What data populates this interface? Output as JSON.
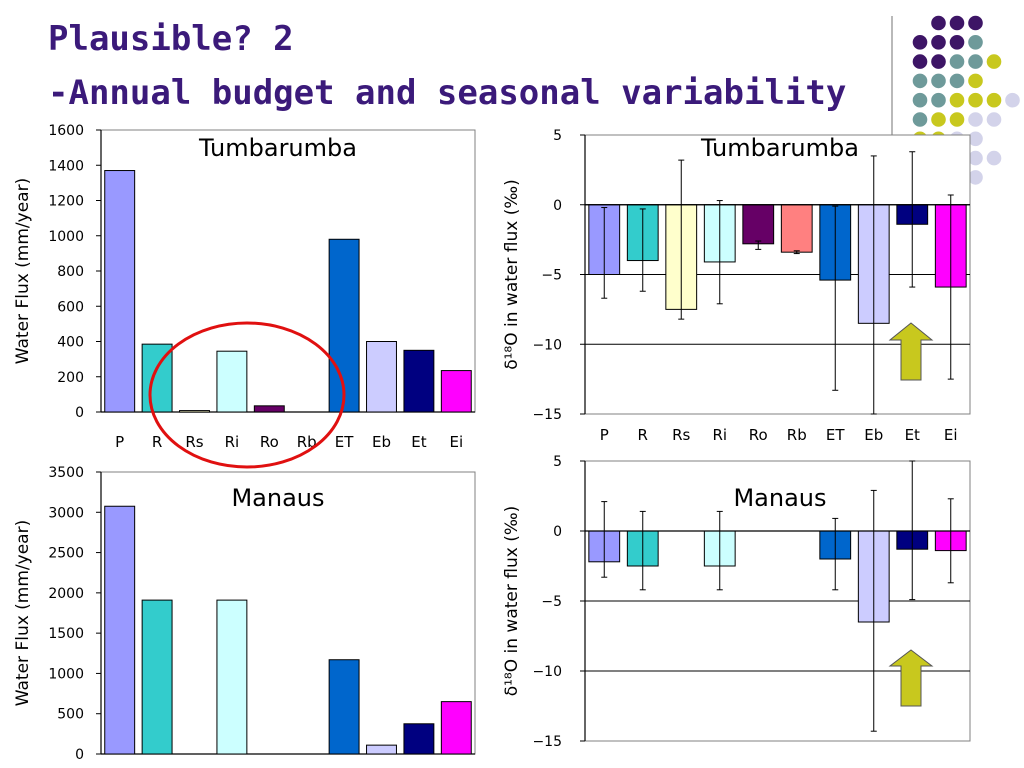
{
  "slide": {
    "title_line1": "Plausible? 2",
    "title_line2": "-Annual budget and seasonal variability"
  },
  "colors": {
    "title": "#3b1a7a",
    "decor_purple": "#3d1566",
    "decor_teal": "#6e9a9a",
    "decor_yellow": "#c8c81e",
    "decor_lavender": "#d3d3ea",
    "annotation_circle": "#e01010",
    "annotation_arrow": "#c8c81e"
  },
  "categories": [
    "P",
    "R",
    "Rs",
    "Ri",
    "Ro",
    "Rb",
    "ET",
    "Eb",
    "Et",
    "Ei"
  ],
  "bar_colors": [
    "#9999ff",
    "#33cccc",
    "#ffffcc",
    "#ccffff",
    "#660066",
    "#ff8080",
    "#0066cc",
    "#ccccff",
    "#000080",
    "#ff00ff"
  ],
  "chart_data": [
    {
      "type": "bar",
      "title": "Tumbarumba",
      "ylabel": "Water Flux (mm/year)",
      "ylim": [
        0,
        1600
      ],
      "yticks": [
        "0",
        "200",
        "400",
        "600",
        "800",
        "1000",
        "1200",
        "1400",
        "1600"
      ],
      "show_x_labels": true,
      "categories": [
        "P",
        "R",
        "Rs",
        "Ri",
        "Ro",
        "Rb",
        "ET",
        "Eb",
        "Et",
        "Ei"
      ],
      "values": [
        1370,
        385,
        8,
        345,
        35,
        0,
        980,
        400,
        350,
        235
      ]
    },
    {
      "type": "bar",
      "title": "Tumbarumba",
      "ylabel": "δ¹⁸O in water flux (‰)",
      "ylim": [
        -15,
        5
      ],
      "yticks": [
        "−15",
        "−10",
        "−5",
        "0",
        "5"
      ],
      "grid": true,
      "show_x_labels": true,
      "categories": [
        "P",
        "R",
        "Rs",
        "Ri",
        "Ro",
        "Rb",
        "ET",
        "Eb",
        "Et",
        "Ei"
      ],
      "values": [
        -5.0,
        -4.0,
        -7.5,
        -4.1,
        -2.8,
        -3.4,
        -5.4,
        -8.5,
        -1.4,
        -5.9
      ],
      "error_bars": [
        [
          -6.7,
          -0.2
        ],
        [
          -6.2,
          -0.3
        ],
        [
          -8.2,
          3.2
        ],
        [
          -7.1,
          0.3
        ],
        [
          -3.2,
          -2.6
        ],
        [
          -3.5,
          -3.3
        ],
        [
          -13.3,
          -0.1
        ],
        [
          -15,
          3.5
        ],
        [
          -5.9,
          3.8
        ],
        [
          -12.5,
          0.7
        ]
      ]
    },
    {
      "type": "bar",
      "title": "Manaus",
      "ylabel": "Water Flux (mm/year)",
      "ylim": [
        0,
        3500
      ],
      "yticks": [
        "0",
        "500",
        "1000",
        "1500",
        "2000",
        "2500",
        "3000",
        "3500"
      ],
      "show_x_labels": false,
      "categories": [
        "P",
        "R",
        "Rs",
        "Ri",
        "Ro",
        "Rb",
        "ET",
        "Eb",
        "Et",
        "Ei"
      ],
      "values": [
        3075,
        1910,
        null,
        1910,
        null,
        null,
        1170,
        110,
        375,
        650
      ]
    },
    {
      "type": "bar",
      "title": "Manaus",
      "ylabel": "δ¹⁸O in water flux (‰)",
      "ylim": [
        -15,
        5
      ],
      "yticks": [
        "−15",
        "−10",
        "−5",
        "0",
        "5"
      ],
      "grid": true,
      "show_x_labels": false,
      "categories": [
        "P",
        "R",
        "Rs",
        "Ri",
        "Ro",
        "Rb",
        "ET",
        "Eb",
        "Et",
        "Ei"
      ],
      "values": [
        -2.2,
        -2.5,
        null,
        -2.5,
        null,
        null,
        -2.0,
        -6.5,
        -1.3,
        -1.4
      ],
      "error_bars": [
        [
          -3.3,
          2.1
        ],
        [
          -4.2,
          1.4
        ],
        null,
        [
          -4.2,
          1.4
        ],
        null,
        null,
        [
          -4.2,
          0.9
        ],
        [
          -14.3,
          2.9
        ],
        [
          -4.9,
          5.0
        ],
        [
          -3.7,
          2.3
        ]
      ]
    }
  ]
}
